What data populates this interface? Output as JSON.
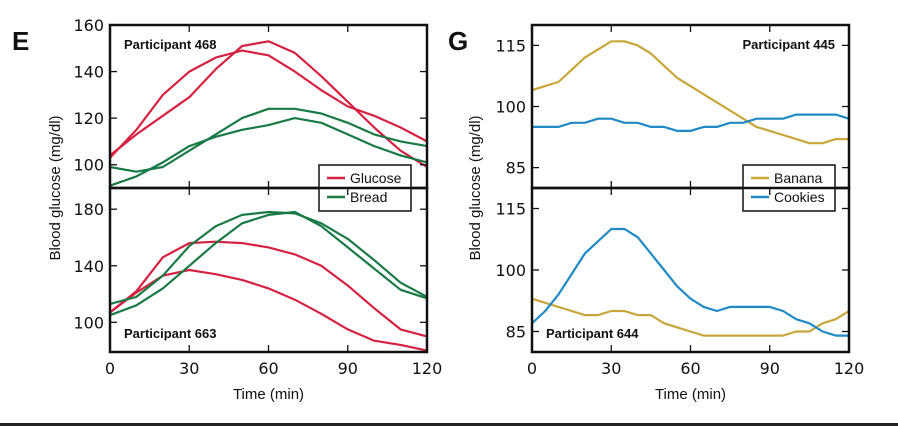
{
  "chart_data": [
    {
      "type": "line",
      "panel": "E",
      "ylabel": "Blood glucose (mg/dl)",
      "xlabel": "Time (min)",
      "xlim": [
        0,
        120
      ],
      "xticks": [
        0,
        30,
        60,
        90,
        120
      ],
      "legend": {
        "placement": "bottom-right of top subplot",
        "entries": [
          {
            "name": "Glucose",
            "color": "#d62242"
          },
          {
            "name": "Bread",
            "color": "#1a7a45"
          }
        ]
      },
      "subplots": [
        {
          "participant": "Participant 468",
          "participant_position": "top-left",
          "ylim": [
            90,
            160
          ],
          "yticks": [
            100,
            120,
            140,
            160
          ],
          "x": [
            0,
            10,
            20,
            30,
            40,
            50,
            60,
            70,
            80,
            90,
            100,
            110,
            120
          ],
          "series": [
            {
              "name": "Glucose",
              "color": "#d62242",
              "values": [
                103,
                115,
                130,
                140,
                146,
                149,
                147,
                140,
                132,
                125,
                121,
                116,
                110
              ]
            },
            {
              "name": "Glucose",
              "color": "#d62242",
              "values": [
                104,
                113,
                121,
                129,
                141,
                151,
                153,
                148,
                138,
                127,
                116,
                106,
                99
              ]
            },
            {
              "name": "Bread",
              "color": "#1a7a45",
              "values": [
                99,
                97,
                99,
                106,
                113,
                120,
                124,
                124,
                122,
                118,
                113,
                110,
                108
              ]
            },
            {
              "name": "Bread",
              "color": "#1a7a45",
              "values": [
                91,
                95,
                101,
                108,
                112,
                115,
                117,
                120,
                118,
                113,
                108,
                104,
                101
              ]
            }
          ]
        },
        {
          "participant": "Participant 663",
          "participant_position": "bottom-left",
          "ylim": [
            79,
            195
          ],
          "yticks": [
            100,
            140,
            180
          ],
          "x": [
            0,
            10,
            20,
            30,
            40,
            50,
            60,
            70,
            80,
            90,
            100,
            110,
            120
          ],
          "series": [
            {
              "name": "Glucose",
              "color": "#d62242",
              "values": [
                107,
                122,
                146,
                156,
                157,
                156,
                153,
                148,
                140,
                126,
                110,
                95,
                90
              ]
            },
            {
              "name": "Glucose",
              "color": "#d62242",
              "values": [
                107,
                121,
                133,
                137,
                134,
                130,
                124,
                116,
                106,
                95,
                87,
                84,
                80
              ]
            },
            {
              "name": "Bread",
              "color": "#1a7a45",
              "values": [
                113,
                118,
                133,
                154,
                168,
                176,
                178,
                177,
                170,
                159,
                144,
                128,
                118
              ]
            },
            {
              "name": "Bread",
              "color": "#1a7a45",
              "values": [
                105,
                112,
                124,
                140,
                156,
                170,
                176,
                178,
                168,
                153,
                138,
                123,
                117
              ]
            }
          ]
        }
      ]
    },
    {
      "type": "line",
      "panel": "G",
      "ylabel": "Blood glucose (mg/dl)",
      "xlabel": "Time (min)",
      "xlim": [
        0,
        120
      ],
      "xticks": [
        0,
        30,
        60,
        90,
        120
      ],
      "legend": {
        "placement": "bottom-right of top subplot",
        "entries": [
          {
            "name": "Banana",
            "color": "#c9a53a"
          },
          {
            "name": "Cookies",
            "color": "#1f8ac4"
          }
        ]
      },
      "subplots": [
        {
          "participant": "Participant 445",
          "participant_position": "top-right",
          "ylim": [
            80,
            120
          ],
          "yticks": [
            85,
            100,
            115
          ],
          "x": [
            0,
            5,
            10,
            15,
            20,
            25,
            30,
            35,
            40,
            45,
            50,
            55,
            60,
            65,
            70,
            75,
            80,
            85,
            90,
            95,
            100,
            105,
            110,
            115,
            120
          ],
          "series": [
            {
              "name": "Banana",
              "color": "#c9a53a",
              "values": [
                104,
                105,
                106,
                109,
                112,
                114,
                116,
                116,
                115,
                113,
                110,
                107,
                105,
                103,
                101,
                99,
                97,
                95,
                94,
                93,
                92,
                91,
                91,
                92,
                92
              ]
            },
            {
              "name": "Cookies",
              "color": "#1f8ac4",
              "values": [
                95,
                95,
                95,
                96,
                96,
                97,
                97,
                96,
                96,
                95,
                95,
                94,
                94,
                95,
                95,
                96,
                96,
                97,
                97,
                97,
                98,
                98,
                98,
                98,
                97
              ]
            }
          ]
        },
        {
          "participant": "Participant 644",
          "participant_position": "bottom-left",
          "ylim": [
            80,
            120
          ],
          "yticks": [
            85,
            100,
            115
          ],
          "x": [
            0,
            5,
            10,
            15,
            20,
            25,
            30,
            35,
            40,
            45,
            50,
            55,
            60,
            65,
            70,
            75,
            80,
            85,
            90,
            95,
            100,
            105,
            110,
            115,
            120
          ],
          "series": [
            {
              "name": "Banana",
              "color": "#c9a53a",
              "values": [
                93,
                92,
                91,
                90,
                89,
                89,
                90,
                90,
                89,
                89,
                87,
                86,
                85,
                84,
                84,
                84,
                84,
                84,
                84,
                84,
                85,
                85,
                87,
                88,
                90
              ]
            },
            {
              "name": "Cookies",
              "color": "#1f8ac4",
              "values": [
                87,
                90,
                94,
                99,
                104,
                107,
                110,
                110,
                108,
                104,
                100,
                96,
                93,
                91,
                90,
                91,
                91,
                91,
                91,
                90,
                88,
                87,
                85,
                84,
                84
              ]
            }
          ]
        }
      ]
    }
  ]
}
